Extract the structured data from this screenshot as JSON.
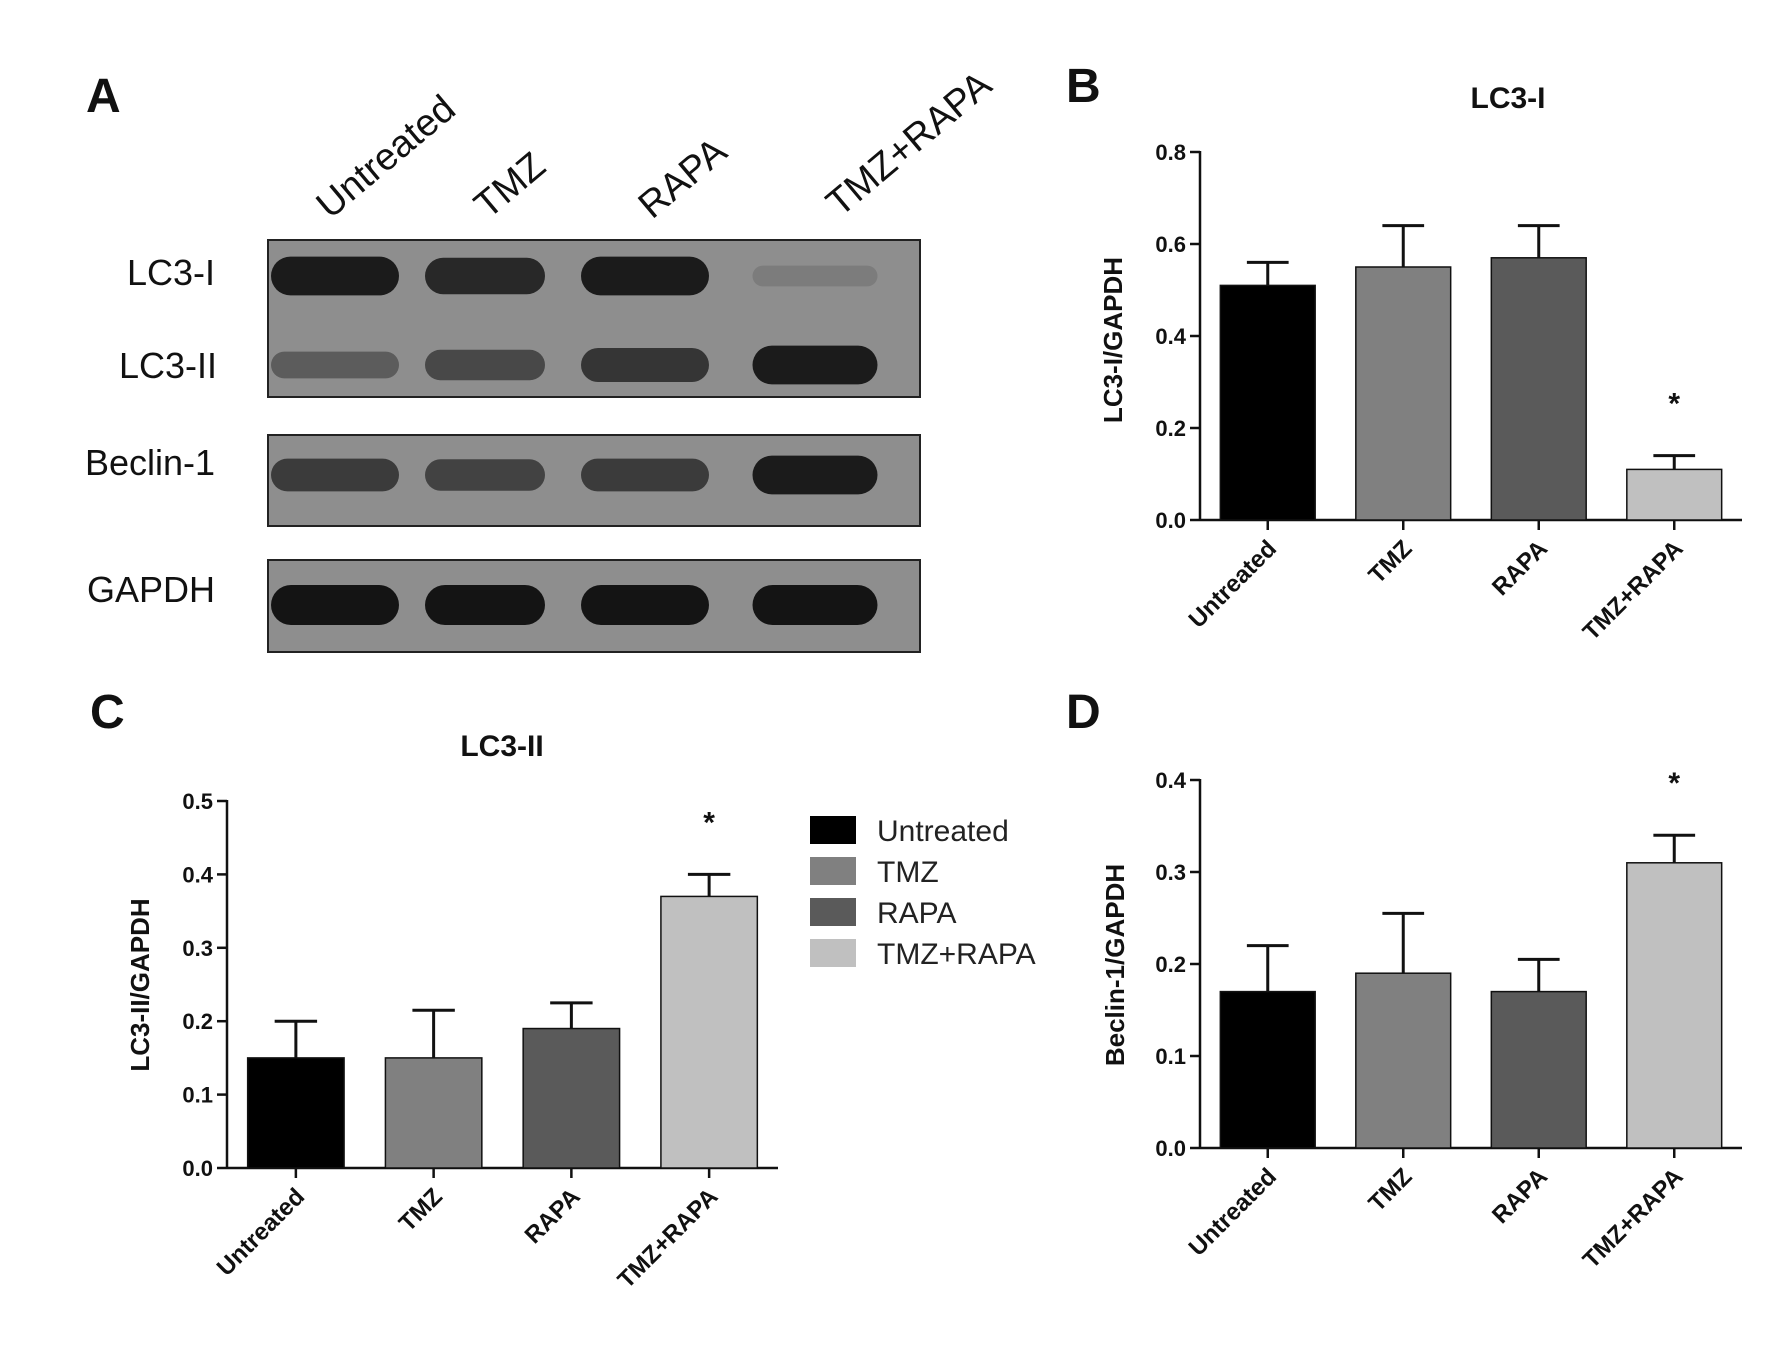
{
  "figure": {
    "panel_labels": [
      "A",
      "B",
      "C",
      "D"
    ]
  },
  "blot": {
    "lanes": [
      "Untreated",
      "TMZ",
      "RAPA",
      "TMZ+RAPA"
    ],
    "rows": [
      {
        "label": "LC3-I",
        "intensity": [
          0.95,
          0.85,
          0.95,
          0.2
        ]
      },
      {
        "label": "LC3-II",
        "intensity": [
          0.45,
          0.6,
          0.75,
          0.95
        ]
      },
      {
        "label": "Beclin-1",
        "intensity": [
          0.7,
          0.65,
          0.7,
          0.95
        ]
      },
      {
        "label": "GAPDH",
        "intensity": [
          1.0,
          1.0,
          1.0,
          1.0
        ]
      }
    ]
  },
  "legend": {
    "entries": [
      {
        "label": "Untreated",
        "color": "#000000"
      },
      {
        "label": "TMZ",
        "color": "#808080"
      },
      {
        "label": "RAPA",
        "color": "#5a5a5a"
      },
      {
        "label": "TMZ+RAPA",
        "color": "#c0c0c0"
      }
    ]
  },
  "chart_data": [
    {
      "panel": "B",
      "type": "bar",
      "title": "LC3-I",
      "ylabel": "LC3-I/GAPDH",
      "categories": [
        "Untreated",
        "TMZ",
        "RAPA",
        "TMZ+RAPA"
      ],
      "values": [
        0.51,
        0.55,
        0.57,
        0.11
      ],
      "errors": [
        0.05,
        0.09,
        0.07,
        0.03
      ],
      "significant": [
        false,
        false,
        false,
        true
      ],
      "colors": [
        "#000000",
        "#808080",
        "#5a5a5a",
        "#c0c0c0"
      ],
      "ylim": [
        0,
        0.8
      ],
      "yticks": [
        "0.0",
        "0.2",
        "0.4",
        "0.6",
        "0.8"
      ],
      "star_label": "*"
    },
    {
      "panel": "C",
      "type": "bar",
      "title": "LC3-II",
      "ylabel": "LC3-II/GAPDH",
      "categories": [
        "Untreated",
        "TMZ",
        "RAPA",
        "TMZ+RAPA"
      ],
      "values": [
        0.15,
        0.15,
        0.19,
        0.37
      ],
      "errors": [
        0.05,
        0.065,
        0.035,
        0.03
      ],
      "significant": [
        false,
        false,
        false,
        true
      ],
      "colors": [
        "#000000",
        "#808080",
        "#5a5a5a",
        "#c0c0c0"
      ],
      "ylim": [
        0,
        0.5
      ],
      "yticks": [
        "0.0",
        "0.1",
        "0.2",
        "0.3",
        "0.4",
        "0.5"
      ],
      "star_label": "*"
    },
    {
      "panel": "D",
      "type": "bar",
      "title": "",
      "ylabel": "Beclin-1/GAPDH",
      "categories": [
        "Untreated",
        "TMZ",
        "RAPA",
        "TMZ+RAPA"
      ],
      "values": [
        0.17,
        0.19,
        0.17,
        0.31
      ],
      "errors": [
        0.05,
        0.065,
        0.035,
        0.03
      ],
      "significant": [
        false,
        false,
        false,
        true
      ],
      "colors": [
        "#000000",
        "#808080",
        "#5a5a5a",
        "#c0c0c0"
      ],
      "ylim": [
        0,
        0.4
      ],
      "yticks": [
        "0.0",
        "0.1",
        "0.2",
        "0.3",
        "0.4"
      ],
      "star_label": "*"
    }
  ]
}
